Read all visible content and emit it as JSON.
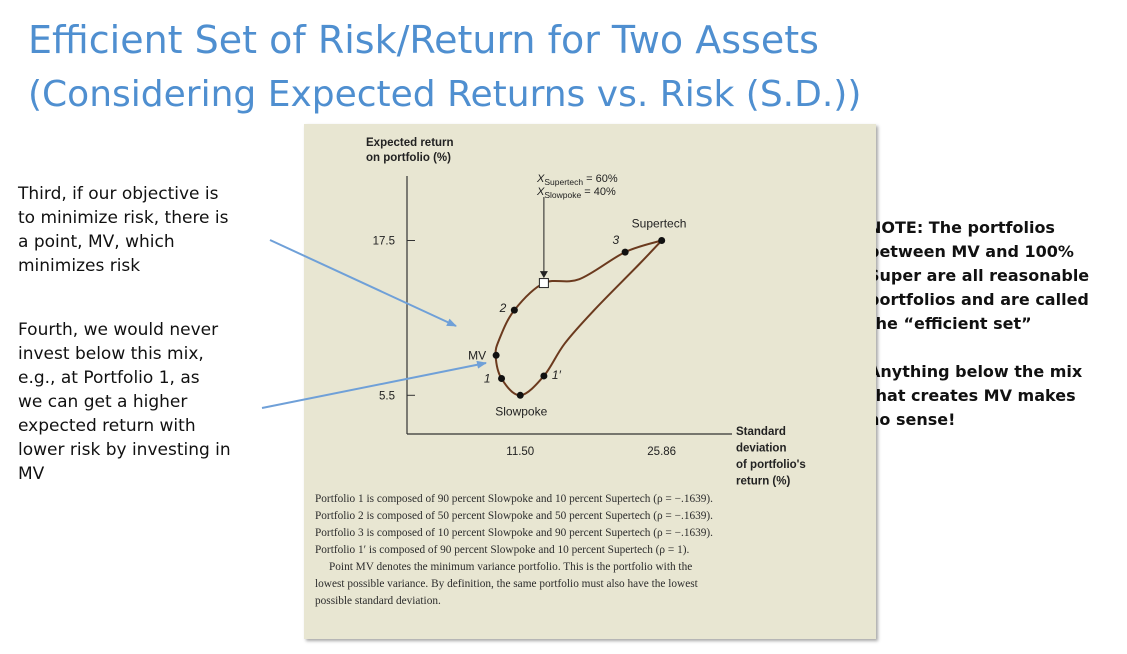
{
  "slide": {
    "title_line1": "Efficient Set of Risk/Return for Two Assets",
    "title_line2": "(Considering Expected Returns vs. Risk (S.D.))",
    "note_third": [
      "Third, if our objective is",
      "to minimize risk, there is",
      "a point, MV, which",
      "minimizes risk"
    ],
    "note_fourth": [
      "Fourth, we would never",
      "invest below this mix,",
      "e.g., at Portfolio 1, as",
      "we can get a higher",
      "expected return with",
      "lower risk by investing in",
      "MV"
    ],
    "note_right": [
      "NOTE: The portfolios",
      "between MV and 100%",
      "Super are all reasonable",
      "portfolios and are called",
      "the “efficient set”",
      "",
      "Anything below the mix",
      "that creates MV makes",
      "no sense!"
    ],
    "arrow_color": "#6fa0d8"
  },
  "figure": {
    "bg_color": "#e8e6d2",
    "curve_color": "#6b3a1e",
    "caption": [
      "Portfolio 1 is composed of 90 percent Slowpoke and 10 percent Supertech (ρ = −.1639).",
      "Portfolio 2 is composed of 50 percent Slowpoke and 50 percent Supertech (ρ = −.1639).",
      "Portfolio 3 is composed of 10 percent Slowpoke and 90 percent Supertech (ρ = −.1639).",
      "Portfolio 1′ is composed of 90 percent Slowpoke and 10 percent Supertech (ρ = 1).",
      "Point MV denotes the minimum variance portfolio. This is the portfolio with the",
      "lowest possible variance. By definition, the same portfolio must also have the lowest",
      "possible standard deviation."
    ]
  },
  "chart_data": {
    "type": "line",
    "ylabel": "Expected return on portfolio (%)",
    "xlabel": "Standard deviation of portfolio's return (%)",
    "x_ticks": [
      "11.50",
      "25.86"
    ],
    "y_ticks": [
      "5.5",
      "17.5"
    ],
    "xlim": [
      0,
      33
    ],
    "ylim": [
      2.5,
      22.5
    ],
    "series": [
      {
        "name": "",
        "values": [
          {
            "x": 25.86,
            "y": 17.5
          },
          {
            "x": 22.15,
            "y": 16.6
          },
          {
            "x": 17.5,
            "y": 14.5
          },
          {
            "x": 13.9,
            "y": 14.2
          },
          {
            "x": 10.9,
            "y": 12.1
          },
          {
            "x": 9.4,
            "y": 9.9
          },
          {
            "x": 9.0,
            "y": 8.6
          },
          {
            "x": 9.6,
            "y": 6.8
          },
          {
            "x": 11.5,
            "y": 5.5
          },
          {
            "x": 13.9,
            "y": 7.0
          },
          {
            "x": 16.0,
            "y": 9.5
          },
          {
            "x": 19.0,
            "y": 12.1
          },
          {
            "x": 23.5,
            "y": 15.6
          },
          {
            "x": 25.86,
            "y": 17.5
          }
        ]
      }
    ],
    "points": [
      {
        "label": "Supertech",
        "x": 25.86,
        "y": 17.5,
        "marker": "dot"
      },
      {
        "label": "3",
        "x": 22.15,
        "y": 16.6,
        "marker": "dot"
      },
      {
        "label": "",
        "x": 13.9,
        "y": 14.2,
        "marker": "square"
      },
      {
        "label": "2",
        "x": 10.9,
        "y": 12.1,
        "marker": "dot"
      },
      {
        "label": "MV",
        "x": 9.05,
        "y": 8.6,
        "marker": "dot"
      },
      {
        "label": "1",
        "x": 9.6,
        "y": 6.8,
        "marker": "dot"
      },
      {
        "label": "Slowpoke",
        "x": 11.5,
        "y": 5.5,
        "marker": "dot"
      },
      {
        "label": "1′",
        "x": 13.9,
        "y": 7.0,
        "marker": "dot"
      }
    ],
    "annotation": {
      "lines": [
        "X_Supertech = 60%",
        "X_Slowpoke = 40%"
      ]
    },
    "grid": false
  }
}
